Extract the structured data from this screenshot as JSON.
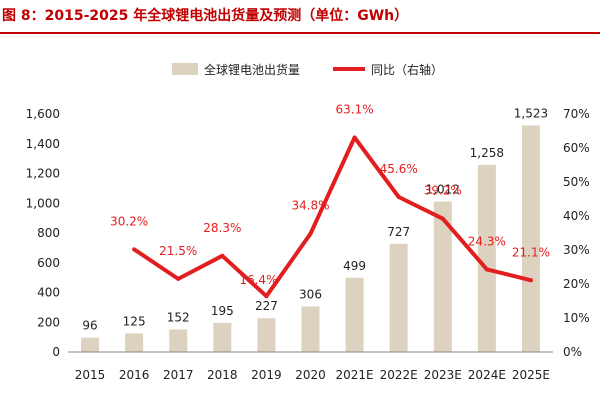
{
  "chart_data": {
    "type": "bar",
    "title": "图 8：2015-2025 年全球锂电池出货量及预测（单位：GWh）",
    "categories": [
      "2015",
      "2016",
      "2017",
      "2018",
      "2019",
      "2020",
      "2021E",
      "2022E",
      "2023E",
      "2024E",
      "2025E"
    ],
    "series": [
      {
        "name": "全球锂电池出货量",
        "kind": "bar",
        "axis": "left",
        "color": "#ddd2bf",
        "values": [
          96,
          125,
          152,
          195,
          227,
          306,
          499,
          727,
          1012,
          1258,
          1523
        ],
        "labels": [
          "96",
          "125",
          "152",
          "195",
          "227",
          "306",
          "499",
          "727",
          "1,012",
          "1,258",
          "1,523"
        ]
      },
      {
        "name": "同比（右轴）",
        "kind": "line",
        "axis": "right",
        "color": "#e31e1e",
        "values": [
          null,
          30.2,
          21.5,
          28.3,
          16.4,
          34.8,
          63.1,
          45.6,
          39.2,
          24.3,
          21.1
        ],
        "labels": [
          "",
          "30.2%",
          "21.5%",
          "28.3%",
          "16.4%",
          "34.8%",
          "63.1%",
          "45.6%",
          "39.2%",
          "24.3%",
          "21.1%"
        ]
      }
    ],
    "y_left": {
      "min": 0,
      "max": 1600,
      "ticks": [
        "0",
        "200",
        "400",
        "600",
        "800",
        "1,000",
        "1,200",
        "1,400",
        "1,600"
      ]
    },
    "y_right": {
      "min": 0,
      "max": 70,
      "ticks": [
        "0%",
        "10%",
        "20%",
        "30%",
        "40%",
        "50%",
        "60%",
        "70%"
      ]
    },
    "legend_position": "top-center",
    "grid": false
  }
}
